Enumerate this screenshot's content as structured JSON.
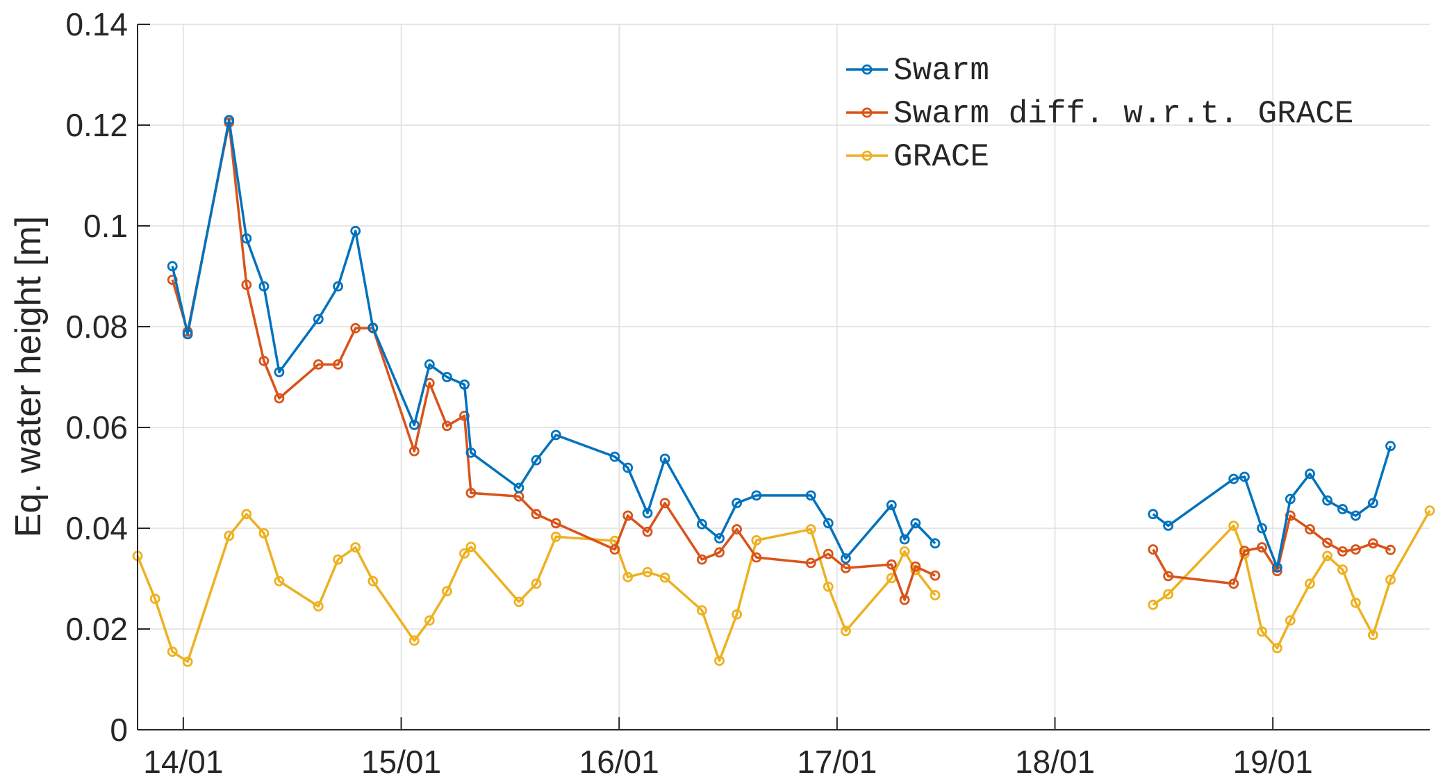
{
  "chart_data": {
    "type": "line",
    "xlabel": "",
    "ylabel": "Eq. water height [m]",
    "grid": true,
    "legend_position": "top-right",
    "xlim": [
      13.79,
      19.72
    ],
    "ylim": [
      0,
      0.14
    ],
    "x_ticks": [
      14,
      15,
      16,
      17,
      18,
      19
    ],
    "x_tick_labels": [
      "14/01",
      "15/01",
      "16/01",
      "17/01",
      "18/01",
      "19/01"
    ],
    "y_ticks": [
      0,
      0.02,
      0.04,
      0.06,
      0.08,
      0.1,
      0.12,
      0.14
    ],
    "y_tick_labels": [
      "0",
      "0.02",
      "0.04",
      "0.06",
      "0.08",
      "0.1",
      "0.12",
      "0.14"
    ],
    "series": [
      {
        "name": "Swarm",
        "color": "#0072BD",
        "points": [
          [
            13.95,
            0.092
          ],
          [
            14.02,
            0.0785
          ],
          [
            14.21,
            0.121
          ],
          [
            14.29,
            0.0975
          ],
          [
            14.37,
            0.088
          ],
          [
            14.44,
            0.071
          ],
          [
            14.62,
            0.0815
          ],
          [
            14.71,
            0.088
          ],
          [
            14.79,
            0.099
          ],
          [
            14.87,
            0.0798
          ],
          [
            15.06,
            0.0605
          ],
          [
            15.13,
            0.0725
          ],
          [
            15.21,
            0.07
          ],
          [
            15.29,
            0.0685
          ],
          [
            15.32,
            0.055
          ],
          [
            15.54,
            0.048
          ],
          [
            15.62,
            0.0535
          ],
          [
            15.71,
            0.0585
          ],
          [
            15.98,
            0.0542
          ],
          [
            16.04,
            0.052
          ],
          [
            16.13,
            0.043
          ],
          [
            16.21,
            0.0538
          ],
          [
            16.38,
            0.0408
          ],
          [
            16.46,
            0.038
          ],
          [
            16.54,
            0.045
          ],
          [
            16.63,
            0.0465
          ],
          [
            16.88,
            0.0465
          ],
          [
            16.96,
            0.041
          ],
          [
            17.04,
            0.034
          ],
          [
            17.25,
            0.0446
          ],
          [
            17.31,
            0.0378
          ],
          [
            17.36,
            0.041
          ],
          [
            17.45,
            0.037
          ],
          null,
          [
            18.45,
            0.0428
          ],
          [
            18.52,
            0.0405
          ],
          [
            18.82,
            0.0498
          ],
          [
            18.87,
            0.0502
          ],
          [
            18.95,
            0.04
          ],
          [
            19.02,
            0.0322
          ],
          [
            19.08,
            0.0458
          ],
          [
            19.17,
            0.0508
          ],
          [
            19.25,
            0.0455
          ],
          [
            19.32,
            0.0438
          ],
          [
            19.38,
            0.0425
          ],
          [
            19.46,
            0.045
          ],
          [
            19.54,
            0.0563
          ]
        ]
      },
      {
        "name": "Swarm diff. w.r.t. GRACE",
        "color": "#D95319",
        "points": [
          [
            13.95,
            0.0893
          ],
          [
            14.02,
            0.079
          ],
          [
            14.21,
            0.1205
          ],
          [
            14.29,
            0.0883
          ],
          [
            14.37,
            0.0732
          ],
          [
            14.44,
            0.0658
          ],
          [
            14.62,
            0.0725
          ],
          [
            14.71,
            0.0725
          ],
          [
            14.79,
            0.0797
          ],
          [
            14.87,
            0.0797
          ],
          [
            15.06,
            0.0553
          ],
          [
            15.13,
            0.0688
          ],
          [
            15.21,
            0.0603
          ],
          [
            15.29,
            0.0623
          ],
          [
            15.32,
            0.047
          ],
          [
            15.54,
            0.0463
          ],
          [
            15.62,
            0.0428
          ],
          [
            15.71,
            0.041
          ],
          [
            15.98,
            0.0358
          ],
          [
            16.04,
            0.0425
          ],
          [
            16.13,
            0.0393
          ],
          [
            16.21,
            0.045
          ],
          [
            16.38,
            0.0338
          ],
          [
            16.46,
            0.0352
          ],
          [
            16.54,
            0.0398
          ],
          [
            16.63,
            0.0342
          ],
          [
            16.88,
            0.0331
          ],
          [
            16.96,
            0.0349
          ],
          [
            17.04,
            0.0321
          ],
          [
            17.25,
            0.0328
          ],
          [
            17.31,
            0.0258
          ],
          [
            17.36,
            0.0324
          ],
          [
            17.45,
            0.0306
          ],
          null,
          [
            18.45,
            0.0358
          ],
          [
            18.52,
            0.0305
          ],
          [
            18.82,
            0.029
          ],
          [
            18.87,
            0.0355
          ],
          [
            18.95,
            0.0362
          ],
          [
            19.02,
            0.0315
          ],
          [
            19.08,
            0.0425
          ],
          [
            19.17,
            0.0398
          ],
          [
            19.25,
            0.0371
          ],
          [
            19.32,
            0.0354
          ],
          [
            19.38,
            0.0358
          ],
          [
            19.46,
            0.037
          ],
          [
            19.54,
            0.0357
          ]
        ]
      },
      {
        "name": "GRACE",
        "color": "#EDB120",
        "points": [
          [
            13.79,
            0.0345
          ],
          [
            13.87,
            0.026
          ],
          [
            13.95,
            0.0155
          ],
          [
            14.02,
            0.0135
          ],
          [
            14.21,
            0.0385
          ],
          [
            14.29,
            0.0428
          ],
          [
            14.37,
            0.039
          ],
          [
            14.44,
            0.0295
          ],
          [
            14.62,
            0.0245
          ],
          [
            14.71,
            0.0338
          ],
          [
            14.79,
            0.0362
          ],
          [
            14.87,
            0.0295
          ],
          [
            15.06,
            0.0177
          ],
          [
            15.13,
            0.0217
          ],
          [
            15.21,
            0.0275
          ],
          [
            15.29,
            0.035
          ],
          [
            15.32,
            0.0363
          ],
          [
            15.54,
            0.0254
          ],
          [
            15.62,
            0.029
          ],
          [
            15.71,
            0.0383
          ],
          [
            15.98,
            0.0375
          ],
          [
            16.04,
            0.0303
          ],
          [
            16.13,
            0.0313
          ],
          [
            16.21,
            0.0302
          ],
          [
            16.38,
            0.0237
          ],
          [
            16.46,
            0.0137
          ],
          [
            16.54,
            0.0229
          ],
          [
            16.63,
            0.0376
          ],
          [
            16.88,
            0.0398
          ],
          [
            16.96,
            0.0284
          ],
          [
            17.04,
            0.0196
          ],
          [
            17.25,
            0.0301
          ],
          [
            17.31,
            0.0354
          ],
          [
            17.36,
            0.0317
          ],
          [
            17.45,
            0.0267
          ],
          null,
          [
            18.45,
            0.0248
          ],
          [
            18.52,
            0.0269
          ],
          [
            18.82,
            0.0405
          ],
          [
            18.87,
            0.0349
          ],
          [
            18.95,
            0.0195
          ],
          [
            19.02,
            0.0162
          ],
          [
            19.08,
            0.0217
          ],
          [
            19.17,
            0.029
          ],
          [
            19.25,
            0.0345
          ],
          [
            19.32,
            0.0318
          ],
          [
            19.38,
            0.0252
          ],
          [
            19.46,
            0.0188
          ],
          [
            19.54,
            0.0298
          ],
          [
            19.72,
            0.0435
          ]
        ]
      }
    ]
  }
}
